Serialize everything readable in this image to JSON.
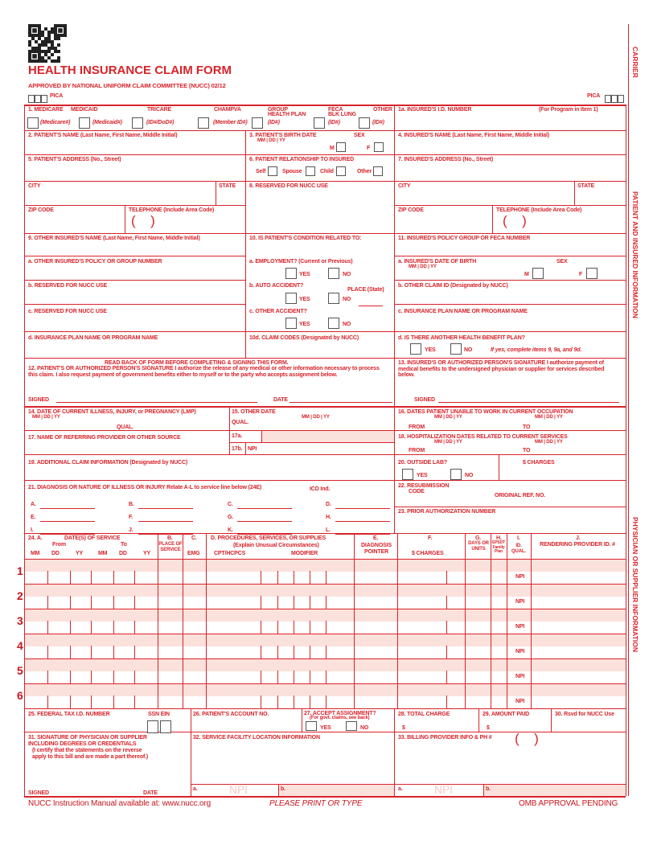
{
  "header": {
    "title": "HEALTH INSURANCE CLAIM FORM",
    "approved": "APPROVED BY NATIONAL UNIFORM CLAIM COMMITTEE (NUCC) 02/12",
    "pica": "PICA",
    "pica_right": "PICA",
    "qr_icon": "qr-code-icon"
  },
  "side": {
    "carrier": "CARRIER",
    "patient": "PATIENT AND INSURED INFORMATION",
    "physician": "PHYSICIAN OR SUPPLIER INFORMATION"
  },
  "colors": {
    "form_red": "#d8232a",
    "shade": "#fbe1dc"
  },
  "f": {
    "i1": "1.   MEDICARE",
    "medicaid": "MEDICAID",
    "tricare": "TRICARE",
    "champva": "CHAMPVA",
    "group_1": "GROUP",
    "group_2": "HEALTH PLAN",
    "feca_1": "FECA",
    "feca_2": "BLK LUNG",
    "other": "OTHER",
    "medicare_id": "(Medicare#)",
    "medicaid_id": "(Medicaid#)",
    "tricare_id": "(ID#/DoD#)",
    "champva_id": "(Member ID#)",
    "group_id": "(ID#)",
    "feca_id": "(ID#)",
    "other_id": "(ID#)",
    "i1a": "1a. INSURED'S I.D. NUMBER",
    "i1a_note": "(For Program in Item 1)",
    "i2": "2. PATIENT'S NAME (Last Name, First Name, Middle Initial)",
    "i3": "3. PATIENT'S BIRTH DATE",
    "sex": "SEX",
    "mmddyy": "MM   |   DD   |   YY",
    "m": "M",
    "f": "F",
    "i4": "4. INSURED'S NAME (Last Name, First Name, Middle Initial)",
    "i5": "5. PATIENT'S ADDRESS (No., Street)",
    "i6": "6. PATIENT RELATIONSHIP TO INSURED",
    "self": "Self",
    "spouse": "Spouse",
    "child": "Child",
    "other_rel": "Other",
    "i7": "7. INSURED'S ADDRESS (No., Street)",
    "city": "CITY",
    "state": "STATE",
    "i8": "8. RESERVED FOR NUCC USE",
    "zip": "ZIP CODE",
    "tel": "TELEPHONE (Include Area Code)",
    "paren": "( )",
    "i9": "9. OTHER INSURED'S NAME (Last Name, First Name, Middle Initial)",
    "i10": "10. IS PATIENT'S CONDITION RELATED TO:",
    "i11": "11. INSURED'S POLICY GROUP OR FECA NUMBER",
    "i9a": "a. OTHER INSURED'S POLICY OR GROUP NUMBER",
    "i10a": "a. EMPLOYMENT? (Current or Previous)",
    "yes": "YES",
    "no": "NO",
    "i11a": "a. INSURED'S DATE OF BIRTH",
    "i9b": "b. RESERVED FOR NUCC USE",
    "i10b": "b. AUTO ACCIDENT?",
    "place": "PLACE (State)",
    "i11b": "b. OTHER CLAIM ID (Designated by NUCC)",
    "i9c": "c. RESERVED FOR NUCC USE",
    "i10c": "c. OTHER ACCIDENT?",
    "i11c": "c. INSURANCE PLAN NAME OR PROGRAM NAME",
    "i9d": "d. INSURANCE PLAN NAME OR PROGRAM NAME",
    "i10d": "10d. CLAIM CODES (Designated by NUCC)",
    "i11d": "d. IS THERE ANOTHER HEALTH BENEFIT PLAN?",
    "i11d_note": "If yes, complete items 9, 9a, and 9d.",
    "read_back": "READ BACK OF FORM BEFORE COMPLETING & SIGNING THIS FORM.",
    "i12": "12. PATIENT'S OR AUTHORIZED PERSON'S SIGNATURE  I authorize the release of any medical or other information necessary to process this claim. I also request payment of government benefits either to myself or to the party who accepts assignment below.",
    "i13": "13. INSURED'S OR AUTHORIZED PERSON'S SIGNATURE I authorize payment of medical benefits to the undersigned physician or supplier for services described below.",
    "signed": "SIGNED",
    "date": "DATE",
    "i14": "14. DATE OF CURRENT ILLNESS, INJURY, or PREGNANCY (LMP)",
    "qual": "QUAL.",
    "i15": "15. OTHER DATE",
    "i16": "16. DATES PATIENT UNABLE TO WORK IN CURRENT OCCUPATION",
    "from": "FROM",
    "to": "TO",
    "i17": "17. NAME OF REFERRING PROVIDER OR OTHER SOURCE",
    "i17a": "17a.",
    "i17b": "17b.",
    "npi": "NPI",
    "i18": "18. HOSPITALIZATION DATES RELATED TO CURRENT SERVICES",
    "i19": "19. ADDITIONAL CLAIM INFORMATION (Designated by NUCC)",
    "i20": "20. OUTSIDE LAB?",
    "charges": "$ CHARGES",
    "i21": "21. DIAGNOSIS OR NATURE OF ILLNESS OR INJURY  Relate A-L to service line below (24E)",
    "icd_ind": "ICD Ind.",
    "dx_letters": [
      "A.",
      "B.",
      "C.",
      "D.",
      "E.",
      "F.",
      "G.",
      "H.",
      "I.",
      "J.",
      "K.",
      "L."
    ],
    "i22_1": "22. RESUBMISSION",
    "i22_2": "CODE",
    "orig_ref": "ORIGINAL REF. NO.",
    "i23": "23. PRIOR AUTHORIZATION NUMBER",
    "h24a": "24. A.",
    "h24_dates": "DATE(S) OF SERVICE",
    "h24_from": "From",
    "h24_to": "To",
    "mm": "MM",
    "dd": "DD",
    "yy": "YY",
    "h24b": "B.",
    "h24b_sub": "PLACE OF SERVICE",
    "h24c": "C.",
    "h24c_sub": "EMG",
    "h24d": "D. PROCEDURES, SERVICES, OR SUPPLIES",
    "h24d_sub": "(Explain Unusual Circumstances)",
    "cpt": "CPT/HCPCS",
    "modifier": "MODIFIER",
    "h24e": "E.",
    "h24e_sub": "DIAGNOSIS POINTER",
    "h24f": "F.",
    "h24f_sub": "$ CHARGES",
    "h24g": "G.",
    "h24g_sub": "DAYS OR UNITS",
    "h24h": "H.",
    "h24h_sub": "EPSDT Family Plan",
    "h24i": "I.",
    "h24i_sub": "ID. QUAL.",
    "h24j": "J.",
    "h24j_sub": "RENDERING PROVIDER ID. #",
    "line_numbers": [
      "1",
      "2",
      "3",
      "4",
      "5",
      "6"
    ],
    "i25": "25. FEDERAL TAX I.D. NUMBER",
    "ssn_ein": "SSN  EIN",
    "i26": "26. PATIENT'S ACCOUNT NO.",
    "i27": "27. ACCEPT ASSIGNMENT?",
    "i27_note": "(For govt. claims, see back)",
    "i28": "28. TOTAL CHARGE",
    "dollar": "$",
    "i29": "29. AMOUNT PAID",
    "i30": "30. Rsvd for NUCC Use",
    "i31": "31. SIGNATURE OF PHYSICIAN OR SUPPLIER INCLUDING DEGREES OR CREDENTIALS",
    "i31_note": "(I certify that the statements on the reverse apply to this bill and are made a part thereof.)",
    "i32": "32. SERVICE FACILITY LOCATION INFORMATION",
    "i33": "33. BILLING PROVIDER INFO & PH #",
    "a": "a.",
    "b": "b.",
    "npi_ghost": "NPI"
  },
  "footer": {
    "manual": "NUCC Instruction Manual available at: www.nucc.org",
    "print": "PLEASE PRINT OR TYPE",
    "omb": "OMB APPROVAL PENDING"
  }
}
